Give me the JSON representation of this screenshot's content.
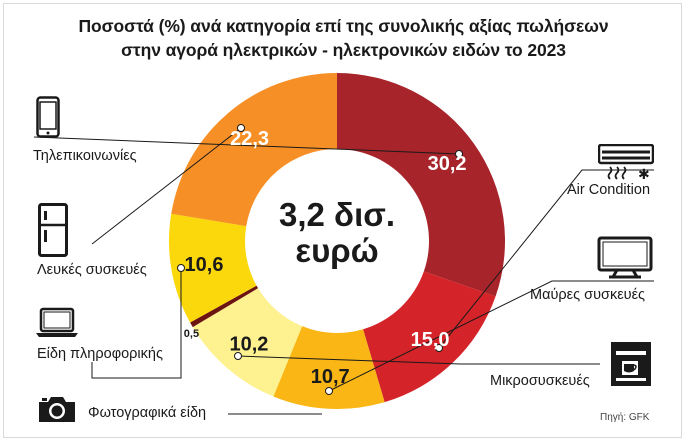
{
  "title_line1": "Ποσοστά (%) ανά κατηγορία επί της συνολικής αξίας πωλήσεων",
  "title_line2": "στην αγορά ηλεκτρικών - ηλεκτρονικών ειδών το 2023",
  "center_line1": "3,2 δισ.",
  "center_line2": "ευρώ",
  "source": "Πηγή: GFK",
  "chart_data": {
    "type": "pie",
    "donut": true,
    "categories": [
      "Τηλεπικοινωνίες",
      "Air Condition",
      "Μαύρες συσκευές",
      "Μικροσυσκευές",
      "Φωτογραφικά είδη",
      "Είδη πληροφορικής",
      "Λευκές συσκευές"
    ],
    "values": [
      30.2,
      15.0,
      10.7,
      10.2,
      0.5,
      10.6,
      22.3
    ],
    "value_labels": [
      "30,2",
      "15,0",
      "10,7",
      "10,2",
      "0,5",
      "10,6",
      "22,3"
    ],
    "colors": [
      "#a6242a",
      "#d42429",
      "#f9b614",
      "#fdf28f",
      "#6b1411",
      "#fbd80b",
      "#f68f25"
    ],
    "label_colors": [
      "#ffffff",
      "#ffffff",
      "#1a1a1a",
      "#1a1a1a",
      "#1a1a1a",
      "#1a1a1a",
      "#ffffff"
    ]
  },
  "icons": [
    "smartphone-icon",
    "air-conditioner-icon",
    "television-icon",
    "refrigerator-icon",
    "laptop-icon",
    "coffee-machine-icon",
    "camera-icon"
  ]
}
